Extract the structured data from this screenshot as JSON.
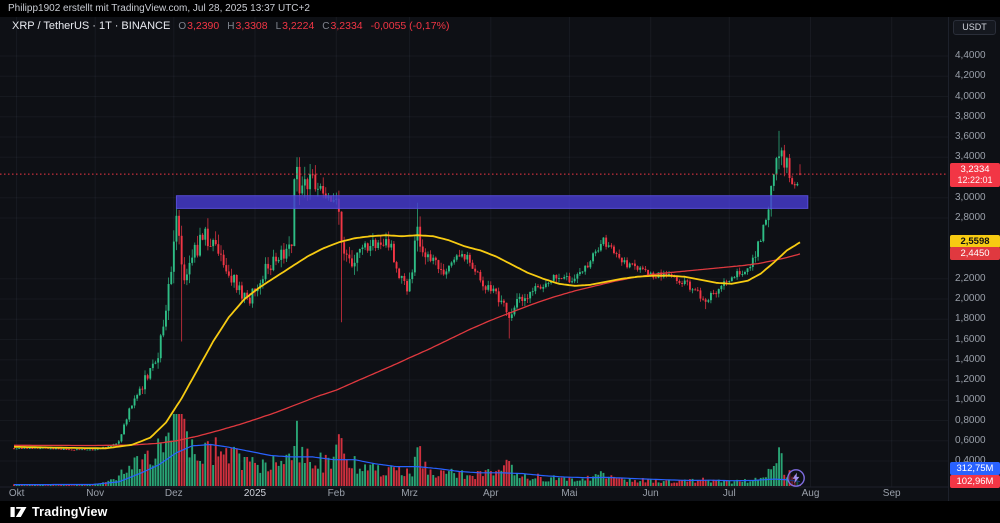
{
  "meta": {
    "attribution": "Philipp1902 erstellt mit TradingView.com, Jul 28, 2025 13:37 UTC+2"
  },
  "legend": {
    "title": "XRP / TetherUS · 1T · BINANCE",
    "o_label": "O",
    "o": "3,2390",
    "h_label": "H",
    "h": "3,3308",
    "l_label": "L",
    "l": "3,2224",
    "c_label": "C",
    "c": "3,2334",
    "change": "-0,0055 (-0,17%)"
  },
  "axis": {
    "currency_button": "USDT",
    "price_ticks": [
      {
        "v": 4.4,
        "label": "4,4000"
      },
      {
        "v": 4.2,
        "label": "4,2000"
      },
      {
        "v": 4.0,
        "label": "4,0000"
      },
      {
        "v": 3.8,
        "label": "3,8000"
      },
      {
        "v": 3.6,
        "label": "3,6000"
      },
      {
        "v": 3.4,
        "label": "3,4000"
      },
      {
        "v": 3.0,
        "label": "3,0000"
      },
      {
        "v": 2.8,
        "label": "2,8000"
      },
      {
        "v": 2.2,
        "label": "2,2000"
      },
      {
        "v": 2.0,
        "label": "2,0000"
      },
      {
        "v": 1.8,
        "label": "1,8000"
      },
      {
        "v": 1.6,
        "label": "1,6000"
      },
      {
        "v": 1.4,
        "label": "1,4000"
      },
      {
        "v": 1.2,
        "label": "1,2000"
      },
      {
        "v": 1.0,
        "label": "1,0000"
      },
      {
        "v": 0.8,
        "label": "0,8000"
      },
      {
        "v": 0.6,
        "label": "0,6000"
      },
      {
        "v": 0.4,
        "label": "0,4000"
      }
    ],
    "months": [
      {
        "label": "Okt",
        "day": 1
      },
      {
        "label": "Nov",
        "day": 31
      },
      {
        "label": "Dez",
        "day": 61
      },
      {
        "label": "2025",
        "day": 92
      },
      {
        "label": "Feb",
        "day": 123
      },
      {
        "label": "Mrz",
        "day": 151
      },
      {
        "label": "Apr",
        "day": 182
      },
      {
        "label": "Mai",
        "day": 212
      },
      {
        "label": "Jun",
        "day": 243
      },
      {
        "label": "Jul",
        "day": 273
      },
      {
        "label": "Aug",
        "day": 304
      },
      {
        "label": "Sep",
        "day": 335
      }
    ]
  },
  "price_labels": {
    "last": {
      "price": "3,2334",
      "countdown": "12:22:01"
    },
    "ma_fast": {
      "value": "2,5598"
    },
    "ma_slow": {
      "value": "2,4450"
    },
    "vol_ma": {
      "value": "312,75M"
    },
    "vol_last": {
      "value": "102,96M"
    }
  },
  "footer": {
    "brand": "TradingView"
  },
  "chart_data": {
    "type": "candlestick",
    "title": "XRP / TetherUS · 1T · BINANCE",
    "symbol": "XRP/USDT",
    "interval": "1D",
    "exchange": "BINANCE",
    "price_axis": {
      "min": 0.2,
      "max": 4.55,
      "tick_step": 0.2
    },
    "x_axis": {
      "start": "2024-10-01",
      "last_day": "2025-07-28",
      "days": 300,
      "future_label": "Sep"
    },
    "last": {
      "open": 3.239,
      "high": 3.3308,
      "low": 3.2224,
      "close": 3.2334,
      "volume_m": 102.96,
      "change": -0.0055,
      "change_pct": -0.17
    },
    "last_price_line": 3.2334,
    "ma_fast_last": 2.5598,
    "ma_slow_last": 2.445,
    "volume_ma_last_m": 312.75,
    "colors": {
      "bg": "#0e1015",
      "up": "#2ebd85",
      "down": "#f23645",
      "ma_fast": "#f7cb12",
      "ma_slow": "#e0393f",
      "vol_ma": "#2962ff",
      "zone": "#473cd0",
      "last_line": "#f23645"
    },
    "resistance_zone": {
      "from_day": 62,
      "to_day": 303,
      "top": 3.02,
      "bottom": 2.895,
      "opacity": 0.82
    },
    "path_anchors": [
      [
        0,
        0.525
      ],
      [
        10,
        0.53
      ],
      [
        20,
        0.515
      ],
      [
        30,
        0.51
      ],
      [
        36,
        0.54
      ],
      [
        40,
        0.6
      ],
      [
        44,
        0.9
      ],
      [
        48,
        1.1
      ],
      [
        52,
        1.3
      ],
      [
        55,
        1.45
      ],
      [
        58,
        1.95
      ],
      [
        61,
        2.55
      ],
      [
        62,
        2.8
      ],
      [
        64,
        2.3
      ],
      [
        66,
        2.25
      ],
      [
        69,
        2.45
      ],
      [
        73,
        2.62
      ],
      [
        78,
        2.45
      ],
      [
        82,
        2.25
      ],
      [
        86,
        2.1
      ],
      [
        89,
        1.98
      ],
      [
        92,
        2.08
      ],
      [
        96,
        2.3
      ],
      [
        100,
        2.4
      ],
      [
        104,
        2.45
      ],
      [
        106,
        2.6
      ],
      [
        107,
        3.1
      ],
      [
        108,
        3.25
      ],
      [
        110,
        3.05
      ],
      [
        113,
        3.15
      ],
      [
        116,
        3.1
      ],
      [
        119,
        2.95
      ],
      [
        122,
        3.05
      ],
      [
        124,
        2.85
      ],
      [
        125,
        2.5
      ],
      [
        126,
        2.45
      ],
      [
        129,
        2.4
      ],
      [
        133,
        2.52
      ],
      [
        137,
        2.55
      ],
      [
        141,
        2.58
      ],
      [
        144,
        2.5
      ],
      [
        147,
        2.22
      ],
      [
        150,
        2.1
      ],
      [
        152,
        2.25
      ],
      [
        154,
        2.8
      ],
      [
        155,
        2.55
      ],
      [
        158,
        2.45
      ],
      [
        161,
        2.35
      ],
      [
        164,
        2.28
      ],
      [
        168,
        2.38
      ],
      [
        172,
        2.42
      ],
      [
        176,
        2.3
      ],
      [
        180,
        2.12
      ],
      [
        184,
        2.05
      ],
      [
        187,
        1.95
      ],
      [
        189,
        1.85
      ],
      [
        191,
        1.92
      ],
      [
        194,
        2.02
      ],
      [
        198,
        2.08
      ],
      [
        202,
        2.12
      ],
      [
        206,
        2.2
      ],
      [
        210,
        2.18
      ],
      [
        214,
        2.22
      ],
      [
        218,
        2.3
      ],
      [
        222,
        2.45
      ],
      [
        225,
        2.58
      ],
      [
        228,
        2.48
      ],
      [
        232,
        2.38
      ],
      [
        236,
        2.32
      ],
      [
        240,
        2.28
      ],
      [
        244,
        2.22
      ],
      [
        248,
        2.26
      ],
      [
        252,
        2.2
      ],
      [
        256,
        2.16
      ],
      [
        260,
        2.08
      ],
      [
        264,
        1.98
      ],
      [
        267,
        2.05
      ],
      [
        270,
        2.12
      ],
      [
        273,
        2.18
      ],
      [
        276,
        2.24
      ],
      [
        279,
        2.28
      ],
      [
        282,
        2.38
      ],
      [
        285,
        2.6
      ],
      [
        287,
        2.85
      ],
      [
        289,
        3.05
      ],
      [
        290,
        3.25
      ],
      [
        291,
        3.45
      ],
      [
        292,
        3.5
      ],
      [
        293,
        3.42
      ],
      [
        295,
        3.35
      ],
      [
        296,
        3.2
      ],
      [
        297,
        3.12
      ],
      [
        298,
        3.1
      ],
      [
        299,
        3.18
      ],
      [
        300,
        3.2334
      ]
    ],
    "volatility_anchors": [
      [
        0,
        0.018
      ],
      [
        30,
        0.02
      ],
      [
        38,
        0.05
      ],
      [
        50,
        0.08
      ],
      [
        62,
        0.1
      ],
      [
        70,
        0.08
      ],
      [
        85,
        0.06
      ],
      [
        100,
        0.055
      ],
      [
        108,
        0.08
      ],
      [
        120,
        0.05
      ],
      [
        125,
        0.09
      ],
      [
        135,
        0.05
      ],
      [
        150,
        0.055
      ],
      [
        154,
        0.08
      ],
      [
        165,
        0.045
      ],
      [
        180,
        0.04
      ],
      [
        189,
        0.06
      ],
      [
        200,
        0.035
      ],
      [
        215,
        0.035
      ],
      [
        225,
        0.04
      ],
      [
        240,
        0.03
      ],
      [
        255,
        0.03
      ],
      [
        264,
        0.04
      ],
      [
        275,
        0.03
      ],
      [
        285,
        0.05
      ],
      [
        292,
        0.06
      ],
      [
        297,
        0.04
      ],
      [
        300,
        0.025
      ]
    ],
    "events": [
      {
        "day": 62,
        "high": 2.9
      },
      {
        "day": 64,
        "low": 1.58
      },
      {
        "day": 108,
        "high": 3.4
      },
      {
        "day": 125,
        "low": 1.77
      },
      {
        "day": 154,
        "high": 2.95
      },
      {
        "day": 189,
        "low": 1.61
      },
      {
        "day": 264,
        "low": 1.9
      },
      {
        "day": 292,
        "high": 3.66
      }
    ],
    "volume_anchors_m": [
      [
        0,
        90
      ],
      [
        20,
        80
      ],
      [
        30,
        110
      ],
      [
        36,
        300
      ],
      [
        40,
        700
      ],
      [
        44,
        1400
      ],
      [
        48,
        1800
      ],
      [
        52,
        2200
      ],
      [
        55,
        2600
      ],
      [
        58,
        3400
      ],
      [
        61,
        4600
      ],
      [
        63,
        5100
      ],
      [
        65,
        4300
      ],
      [
        68,
        3200
      ],
      [
        72,
        2800
      ],
      [
        76,
        2500
      ],
      [
        80,
        2300
      ],
      [
        84,
        2000
      ],
      [
        88,
        1700
      ],
      [
        92,
        1500
      ],
      [
        96,
        1600
      ],
      [
        100,
        1500
      ],
      [
        104,
        1700
      ],
      [
        107,
        3200
      ],
      [
        108,
        3600
      ],
      [
        110,
        2400
      ],
      [
        114,
        1900
      ],
      [
        118,
        1600
      ],
      [
        122,
        1900
      ],
      [
        124,
        2800
      ],
      [
        125,
        3400
      ],
      [
        127,
        2200
      ],
      [
        130,
        1700
      ],
      [
        134,
        1300
      ],
      [
        138,
        1100
      ],
      [
        142,
        1000
      ],
      [
        146,
        1300
      ],
      [
        150,
        1200
      ],
      [
        152,
        1100
      ],
      [
        154,
        2600
      ],
      [
        156,
        1700
      ],
      [
        160,
        1100
      ],
      [
        164,
        900
      ],
      [
        168,
        850
      ],
      [
        172,
        800
      ],
      [
        176,
        750
      ],
      [
        180,
        850
      ],
      [
        184,
        900
      ],
      [
        189,
        1500
      ],
      [
        192,
        900
      ],
      [
        196,
        700
      ],
      [
        200,
        620
      ],
      [
        205,
        560
      ],
      [
        210,
        520
      ],
      [
        215,
        480
      ],
      [
        220,
        560
      ],
      [
        224,
        800
      ],
      [
        228,
        560
      ],
      [
        232,
        480
      ],
      [
        236,
        440
      ],
      [
        240,
        400
      ],
      [
        244,
        380
      ],
      [
        248,
        360
      ],
      [
        252,
        340
      ],
      [
        256,
        330
      ],
      [
        260,
        380
      ],
      [
        264,
        520
      ],
      [
        268,
        340
      ],
      [
        272,
        300
      ],
      [
        276,
        320
      ],
      [
        280,
        380
      ],
      [
        283,
        480
      ],
      [
        286,
        900
      ],
      [
        288,
        1300
      ],
      [
        290,
        1700
      ],
      [
        292,
        2000
      ],
      [
        294,
        1300
      ],
      [
        296,
        900
      ],
      [
        298,
        600
      ],
      [
        299,
        400
      ],
      [
        300,
        103
      ]
    ],
    "volume_ma_anchors_m": [
      [
        0,
        100
      ],
      [
        30,
        110
      ],
      [
        40,
        300
      ],
      [
        48,
        900
      ],
      [
        55,
        1500
      ],
      [
        62,
        2400
      ],
      [
        68,
        2900
      ],
      [
        75,
        3000
      ],
      [
        82,
        2800
      ],
      [
        90,
        2500
      ],
      [
        98,
        2200
      ],
      [
        106,
        2100
      ],
      [
        114,
        2100
      ],
      [
        122,
        1900
      ],
      [
        130,
        1900
      ],
      [
        138,
        1600
      ],
      [
        146,
        1400
      ],
      [
        154,
        1400
      ],
      [
        162,
        1250
      ],
      [
        170,
        1050
      ],
      [
        178,
        950
      ],
      [
        186,
        950
      ],
      [
        194,
        900
      ],
      [
        202,
        750
      ],
      [
        210,
        650
      ],
      [
        218,
        600
      ],
      [
        226,
        620
      ],
      [
        234,
        560
      ],
      [
        242,
        500
      ],
      [
        250,
        440
      ],
      [
        258,
        400
      ],
      [
        266,
        420
      ],
      [
        274,
        380
      ],
      [
        282,
        400
      ],
      [
        290,
        500
      ],
      [
        295,
        450
      ],
      [
        300,
        312.75
      ]
    ],
    "ma_fast_anchors": [
      [
        0,
        0.54
      ],
      [
        20,
        0.53
      ],
      [
        35,
        0.525
      ],
      [
        45,
        0.56
      ],
      [
        52,
        0.63
      ],
      [
        58,
        0.78
      ],
      [
        64,
        1.02
      ],
      [
        70,
        1.3
      ],
      [
        76,
        1.58
      ],
      [
        82,
        1.82
      ],
      [
        88,
        2.0
      ],
      [
        94,
        2.12
      ],
      [
        100,
        2.22
      ],
      [
        106,
        2.32
      ],
      [
        112,
        2.42
      ],
      [
        118,
        2.5
      ],
      [
        124,
        2.56
      ],
      [
        130,
        2.6
      ],
      [
        136,
        2.62
      ],
      [
        142,
        2.63
      ],
      [
        148,
        2.62
      ],
      [
        154,
        2.63
      ],
      [
        160,
        2.62
      ],
      [
        166,
        2.58
      ],
      [
        172,
        2.52
      ],
      [
        178,
        2.48
      ],
      [
        184,
        2.42
      ],
      [
        190,
        2.34
      ],
      [
        196,
        2.26
      ],
      [
        202,
        2.2
      ],
      [
        208,
        2.15
      ],
      [
        214,
        2.13
      ],
      [
        220,
        2.14
      ],
      [
        226,
        2.17
      ],
      [
        232,
        2.2
      ],
      [
        238,
        2.22
      ],
      [
        244,
        2.23
      ],
      [
        250,
        2.23
      ],
      [
        256,
        2.22
      ],
      [
        262,
        2.19
      ],
      [
        268,
        2.16
      ],
      [
        274,
        2.15
      ],
      [
        280,
        2.18
      ],
      [
        285,
        2.25
      ],
      [
        290,
        2.36
      ],
      [
        295,
        2.48
      ],
      [
        300,
        2.5598
      ]
    ],
    "ma_slow_anchors": [
      [
        0,
        0.555
      ],
      [
        30,
        0.553
      ],
      [
        45,
        0.558
      ],
      [
        55,
        0.575
      ],
      [
        62,
        0.6
      ],
      [
        70,
        0.645
      ],
      [
        78,
        0.7
      ],
      [
        86,
        0.76
      ],
      [
        92,
        0.81
      ],
      [
        100,
        0.88
      ],
      [
        108,
        0.96
      ],
      [
        116,
        1.04
      ],
      [
        123,
        1.1
      ],
      [
        130,
        1.18
      ],
      [
        138,
        1.27
      ],
      [
        146,
        1.36
      ],
      [
        151,
        1.42
      ],
      [
        158,
        1.5
      ],
      [
        166,
        1.6
      ],
      [
        174,
        1.7
      ],
      [
        182,
        1.79
      ],
      [
        190,
        1.87
      ],
      [
        198,
        1.95
      ],
      [
        206,
        2.02
      ],
      [
        214,
        2.08
      ],
      [
        222,
        2.13
      ],
      [
        230,
        2.18
      ],
      [
        238,
        2.22
      ],
      [
        246,
        2.25
      ],
      [
        254,
        2.27
      ],
      [
        262,
        2.29
      ],
      [
        270,
        2.31
      ],
      [
        278,
        2.33
      ],
      [
        284,
        2.35
      ],
      [
        290,
        2.38
      ],
      [
        295,
        2.41
      ],
      [
        300,
        2.445
      ]
    ]
  }
}
